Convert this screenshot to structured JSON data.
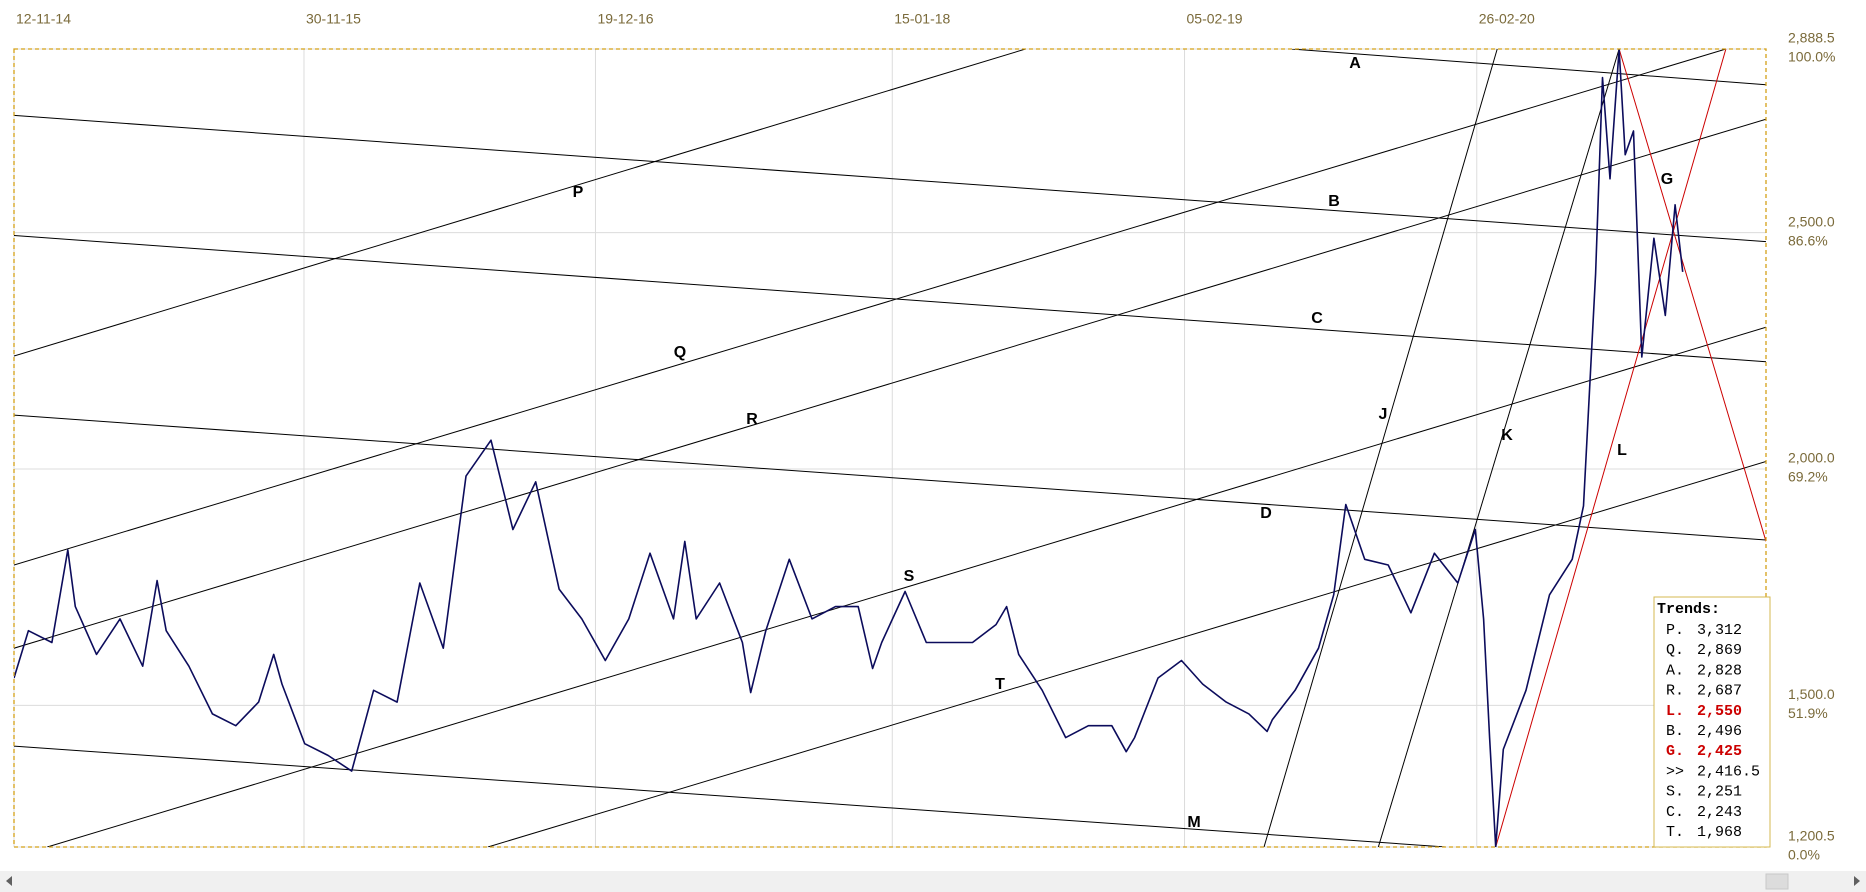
{
  "chart_data": {
    "type": "line",
    "xlim": [
      "12-11-14",
      "14-03-21"
    ],
    "xticks": [
      "12-11-14",
      "30-11-15",
      "19-12-16",
      "15-01-18",
      "05-02-19",
      "26-02-20"
    ],
    "ylim": [
      1200.5,
      2888.5
    ],
    "yticks": [
      {
        "value": 2888.5,
        "label": "2,888.5",
        "label2": "100.0%"
      },
      {
        "value": 2500,
        "label": "2,500.0",
        "label2": "86.6%"
      },
      {
        "value": 2000,
        "label": "2,000.0",
        "label2": "69.2%"
      },
      {
        "value": 1500,
        "label": "1,500.0",
        "label2": "51.9%"
      },
      {
        "value": 1200.5,
        "label": "1,200.5",
        "label2": "0.0%"
      }
    ],
    "grid": true,
    "series": [
      {
        "color": "#0c0c5c",
        "x": [
          "12-11-14",
          "01-12-14",
          "01-01-15",
          "22-01-15",
          "01-02-15",
          "01-03-15",
          "01-04-15",
          "01-05-15",
          "20-05-15",
          "01-06-15",
          "01-07-15",
          "01-08-15",
          "01-09-15",
          "01-10-15",
          "21-10-15",
          "01-11-15",
          "01-12-15",
          "01-01-16",
          "01-02-16",
          "01-03-16",
          "01-04-16",
          "01-05-16",
          "01-06-16",
          "01-07-16",
          "03-08-16",
          "01-09-16",
          "01-10-16",
          "01-11-16",
          "01-12-16",
          "01-01-17",
          "01-02-17",
          "01-03-17",
          "01-04-17",
          "16-04-17",
          "01-05-17",
          "01-06-17",
          "01-07-17",
          "12-07-17",
          "01-08-17",
          "01-09-17",
          "01-10-17",
          "01-11-17",
          "01-12-17",
          "20-12-17",
          "01-01-18",
          "01-02-18",
          "01-03-18",
          "01-04-18",
          "01-05-18",
          "01-06-18",
          "15-06-18",
          "01-07-18",
          "01-08-18",
          "01-09-18",
          "01-10-18",
          "01-11-18",
          "20-11-18",
          "01-12-18",
          "01-01-19",
          "01-02-19",
          "01-03-19",
          "01-04-19",
          "01-05-19",
          "25-05-19",
          "01-06-19",
          "01-07-19",
          "01-08-19",
          "21-08-19",
          "06-09-19",
          "01-10-19",
          "01-11-19",
          "01-12-19",
          "01-01-20",
          "01-02-20",
          "24-02-20",
          "06-03-20",
          "14-03-20",
          "22-03-20",
          "01-04-20",
          "01-05-20",
          "01-06-20",
          "01-07-20",
          "16-07-20",
          "01-08-20",
          "10-08-20",
          "20-08-20",
          "01-09-20",
          "09-09-20",
          "20-09-20",
          "01-10-20",
          "17-10-20",
          "01-11-20",
          "14-11-20",
          "24-11-20"
        ],
        "values": [
          1558,
          1658,
          1633,
          1829,
          1709,
          1608,
          1683,
          1583,
          1764,
          1658,
          1583,
          1482,
          1457,
          1507,
          1608,
          1545,
          1419,
          1394,
          1361,
          1532,
          1507,
          1759,
          1621,
          1985,
          2061,
          1872,
          1973,
          1746,
          1683,
          1595,
          1683,
          1822,
          1683,
          1847,
          1683,
          1759,
          1633,
          1527,
          1658,
          1809,
          1683,
          1709,
          1709,
          1578,
          1633,
          1741,
          1633,
          1633,
          1633,
          1671,
          1709,
          1608,
          1532,
          1432,
          1457,
          1457,
          1402,
          1432,
          1558,
          1595,
          1545,
          1507,
          1482,
          1445,
          1470,
          1532,
          1621,
          1734,
          1925,
          1809,
          1797,
          1696,
          1822,
          1759,
          1872,
          1683,
          1432,
          1201,
          1407,
          1532,
          1734,
          1809,
          1922,
          2413,
          2828,
          2614,
          2888,
          2665,
          2715,
          2237,
          2488,
          2325,
          2559,
          2417
        ]
      }
    ],
    "trendlines": [
      {
        "label": "P",
        "from": [
          "12-11-14",
          2239
        ],
        "to": [
          "10-07-18",
          2888.5
        ],
        "color": "#000000"
      },
      {
        "label": "Q",
        "from": [
          "12-11-14",
          1797
        ],
        "to": [
          "20-01-21",
          2888.5
        ],
        "color": "#000000"
      },
      {
        "label": "R",
        "from": [
          "12-11-14",
          1621
        ],
        "to": [
          "14-03-21",
          2740
        ],
        "color": "#000000"
      },
      {
        "label": "S",
        "from": [
          "26-12-14",
          1200.5
        ],
        "to": [
          "14-03-21",
          2300
        ],
        "color": "#000000"
      },
      {
        "label": "T",
        "from": [
          "30-07-16",
          1200.5
        ],
        "to": [
          "14-03-21",
          2016
        ],
        "color": "#000000"
      },
      {
        "label": "A",
        "from": [
          "26-06-19",
          2888.5
        ],
        "to": [
          "14-03-21",
          2813
        ],
        "color": "#000000"
      },
      {
        "label": "B",
        "from": [
          "12-11-14",
          2748
        ],
        "to": [
          "14-03-21",
          2481
        ],
        "color": "#000000"
      },
      {
        "label": "C",
        "from": [
          "12-11-14",
          2494
        ],
        "to": [
          "14-03-21",
          2227
        ],
        "color": "#000000"
      },
      {
        "label": "D",
        "from": [
          "12-11-14",
          2114
        ],
        "to": [
          "14-03-21",
          1850
        ],
        "color": "#000000"
      },
      {
        "label": "M",
        "from": [
          "12-11-14",
          1414
        ],
        "to": [
          "16-01-20",
          1200.5
        ],
        "color": "#000000"
      },
      {
        "label": "J",
        "from": [
          "21-05-19",
          1200.5
        ],
        "to": [
          "24-03-20",
          2888.5
        ],
        "color": "#000000"
      },
      {
        "label": "K",
        "from": [
          "19-10-19",
          1200.5
        ],
        "to": [
          "01-09-20",
          2888.5
        ],
        "color": "#000000"
      },
      {
        "label": "L",
        "from": [
          "22-03-20",
          1200.5
        ],
        "to": [
          "20-01-21",
          2888.5
        ],
        "color": "#cc0000"
      },
      {
        "label": "G",
        "from": [
          "01-09-20",
          2888.5
        ],
        "to": [
          "14-03-21",
          1847
        ],
        "color": "#cc0000"
      }
    ],
    "trends_title": "Trends:",
    "trends": [
      {
        "name": "P.",
        "value": 3312,
        "label": "3,312",
        "color": "#000000"
      },
      {
        "name": "Q.",
        "value": 2869,
        "label": "2,869",
        "color": "#000000"
      },
      {
        "name": "A.",
        "value": 2828,
        "label": "2,828",
        "color": "#000000"
      },
      {
        "name": "R.",
        "value": 2687,
        "label": "2,687",
        "color": "#000000"
      },
      {
        "name": "L.",
        "value": 2550,
        "label": "2,550",
        "color": "#cc0000"
      },
      {
        "name": "B.",
        "value": 2496,
        "label": "2,496",
        "color": "#000000"
      },
      {
        "name": "G.",
        "value": 2425,
        "label": "2,425",
        "color": "#cc0000"
      },
      {
        "name": ">>",
        "value": 2416.5,
        "label": "2,416.5",
        "color": "#000000"
      },
      {
        "name": "S.",
        "value": 2251,
        "label": "2,251",
        "color": "#000000"
      },
      {
        "name": "C.",
        "value": 2243,
        "label": "2,243",
        "color": "#000000"
      },
      {
        "name": "T.",
        "value": 1968,
        "label": "1,968",
        "color": "#000000"
      }
    ]
  }
}
